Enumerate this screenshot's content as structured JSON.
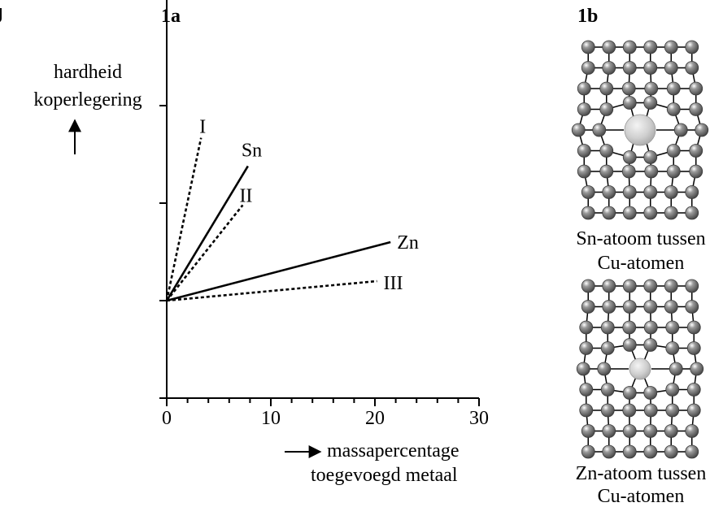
{
  "figure_letter": "g",
  "panel_a": {
    "title": "1a"
  },
  "panel_b": {
    "title": "1b"
  },
  "chart_data": {
    "type": "line",
    "title": "",
    "ylabel_lines": [
      "hardheid",
      "koperlegering"
    ],
    "xlabel_lines": [
      "massapercentage",
      "toegevoegd metaal"
    ],
    "xlim": [
      0,
      30
    ],
    "xticks": [
      0,
      10,
      20,
      30
    ],
    "ylim": [
      -1,
      3
    ],
    "y_ticks_unlabeled": [
      -1,
      0,
      1,
      2
    ],
    "series": [
      {
        "name": "I",
        "style": "dashed",
        "x": [
          0,
          3.3
        ],
        "y": [
          0,
          1.67
        ]
      },
      {
        "name": "Sn",
        "style": "solid",
        "x": [
          0,
          7.8
        ],
        "y": [
          0,
          1.38
        ]
      },
      {
        "name": "II",
        "style": "dashed",
        "x": [
          0,
          7.3
        ],
        "y": [
          0,
          0.98
        ]
      },
      {
        "name": "Zn",
        "style": "solid",
        "x": [
          0,
          21.5
        ],
        "y": [
          0,
          0.6
        ]
      },
      {
        "name": "III",
        "style": "dashed",
        "x": [
          0,
          20.2
        ],
        "y": [
          0,
          0.2
        ]
      }
    ]
  },
  "lattice_top": {
    "caption_lines": [
      "Sn-atoom tussen",
      "Cu-atomen"
    ],
    "solute": "Sn"
  },
  "lattice_bottom": {
    "caption_lines": [
      "Zn-atoom tussen",
      "Cu-atomen"
    ],
    "solute": "Zn"
  },
  "colors": {
    "atom_cu": "#6f6f6f",
    "atom_solute": "#cfcfcf",
    "line": "#000000"
  }
}
